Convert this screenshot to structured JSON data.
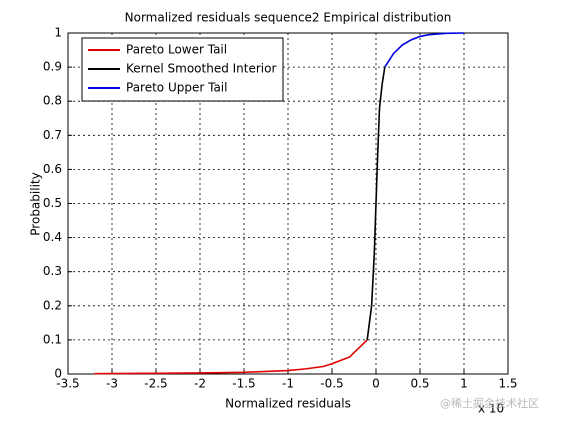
{
  "chart_data": {
    "type": "line",
    "title": "Normalized residuals sequence2 Empirical distribution",
    "x_label": "Normalized residuals",
    "y_label": "Probability",
    "x_multiplier": "x 10",
    "watermark": "@稀土掘金技术社区",
    "xlim": [
      -3.5,
      1.5
    ],
    "xticks": [
      -3.5,
      -3,
      -2.5,
      -2,
      -1.5,
      -1,
      -0.5,
      0,
      0.5,
      1,
      1.5
    ],
    "ylim": [
      0,
      1
    ],
    "yticks": [
      0,
      0.1,
      0.2,
      0.3,
      0.4,
      0.5,
      0.6,
      0.7,
      0.8,
      0.9,
      1
    ],
    "grid": true,
    "legend": "upper left",
    "series": [
      {
        "name": "Pareto Lower Tail",
        "color": "#e00000",
        "x": [
          -3.2,
          -2.5,
          -2,
          -1.5,
          -1,
          -0.8,
          -0.6,
          -0.5,
          -0.4,
          -0.3,
          -0.2,
          -0.1
        ],
        "values": [
          0.001,
          0.002,
          0.003,
          0.005,
          0.01,
          0.015,
          0.022,
          0.03,
          0.04,
          0.05,
          0.075,
          0.1
        ]
      },
      {
        "name": "Kernel Smoothed Interior",
        "color": "#000000",
        "x": [
          -0.1,
          -0.05,
          -0.02,
          0,
          0.02,
          0.04,
          0.07,
          0.1
        ],
        "values": [
          0.1,
          0.2,
          0.35,
          0.5,
          0.65,
          0.78,
          0.85,
          0.9
        ]
      },
      {
        "name": "Pareto Upper Tail",
        "color": "#0000e0",
        "x": [
          0.1,
          0.2,
          0.3,
          0.4,
          0.5,
          0.6,
          0.8,
          1.0
        ],
        "values": [
          0.9,
          0.94,
          0.965,
          0.98,
          0.99,
          0.995,
          0.999,
          1
        ]
      }
    ]
  }
}
